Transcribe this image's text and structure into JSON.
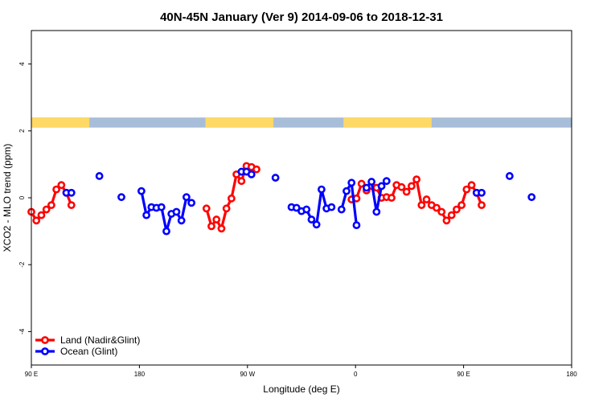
{
  "chart_data": {
    "type": "line",
    "title": "40N-45N January (Ver 9)   2014-09-06 to 2018-12-31",
    "xlabel": "Longitude (deg E)",
    "ylabel": "XCO2 - MLO trend (ppm)",
    "xlim": [
      -90,
      180
    ],
    "ylim": [
      -5,
      5
    ],
    "x_ticks": [
      {
        "value": -90,
        "label": "90 E"
      },
      {
        "value": -36,
        "label": "180"
      },
      {
        "value": 18,
        "label": "90 W"
      },
      {
        "value": 72,
        "label": "0"
      },
      {
        "value": 126,
        "label": "90 E"
      },
      {
        "value": 180,
        "label": "180"
      }
    ],
    "y_ticks": [
      -4,
      -2,
      0,
      2,
      4
    ],
    "land_band": {
      "y_range": [
        2.1,
        2.4
      ],
      "land_color": "#FFD966",
      "ocean_color": "#A7BDD8",
      "land_segments": [
        [
          -90,
          -61
        ],
        [
          -3,
          31
        ],
        [
          66,
          110
        ]
      ]
    },
    "legend": {
      "position": "bottom-left"
    },
    "series": [
      {
        "name": "Land (Nadir&Glint)",
        "color": "#FF0000",
        "segments": [
          [
            [
              -90,
              -0.42
            ],
            [
              -87.5,
              -0.68
            ],
            [
              -85,
              -0.52
            ],
            [
              -82.5,
              -0.35
            ],
            [
              -80,
              -0.22
            ],
            [
              -77.5,
              0.25
            ],
            [
              -75,
              0.38
            ],
            [
              -72.5,
              0.15
            ],
            [
              -70,
              -0.22
            ]
          ],
          [
            [
              -2.5,
              -0.32
            ],
            [
              0,
              -0.85
            ],
            [
              2.5,
              -0.65
            ],
            [
              5,
              -0.92
            ],
            [
              7.5,
              -0.32
            ],
            [
              10,
              -0.02
            ],
            [
              12.5,
              0.7
            ],
            [
              15,
              0.5
            ],
            [
              17.5,
              0.95
            ],
            [
              20,
              0.92
            ],
            [
              22.5,
              0.85
            ]
          ],
          [
            [
              70,
              -0.05
            ],
            [
              72.5,
              -0.02
            ],
            [
              75,
              0.42
            ],
            [
              77.5,
              0.22
            ],
            [
              80,
              0.35
            ],
            [
              82.5,
              0.3
            ],
            [
              85,
              0.0
            ],
            [
              87.5,
              0.02
            ],
            [
              90,
              0.0
            ],
            [
              92.5,
              0.38
            ],
            [
              95,
              0.32
            ],
            [
              97.5,
              0.18
            ],
            [
              100,
              0.35
            ],
            [
              102.5,
              0.55
            ],
            [
              105,
              -0.22
            ],
            [
              107.5,
              -0.05
            ],
            [
              110,
              -0.22
            ],
            [
              112.5,
              -0.3
            ],
            [
              115,
              -0.42
            ],
            [
              117.5,
              -0.68
            ],
            [
              120,
              -0.52
            ],
            [
              122.5,
              -0.35
            ],
            [
              125,
              -0.22
            ],
            [
              127.5,
              0.25
            ],
            [
              130,
              0.38
            ],
            [
              132.5,
              0.15
            ],
            [
              135,
              -0.22
            ]
          ]
        ]
      },
      {
        "name": "Ocean (Glint)",
        "color": "#0000FF",
        "segments": [
          [
            [
              -72.5,
              0.15
            ],
            [
              -70,
              0.15
            ]
          ],
          [
            [
              -56,
              0.65
            ]
          ],
          [
            [
              -45,
              0.02
            ]
          ],
          [
            [
              -35,
              0.2
            ],
            [
              -32.5,
              -0.52
            ],
            [
              -30,
              -0.28
            ],
            [
              -27.5,
              -0.3
            ],
            [
              -25,
              -0.28
            ],
            [
              -22.5,
              -1.0
            ],
            [
              -20,
              -0.48
            ],
            [
              -17.5,
              -0.42
            ],
            [
              -15,
              -0.68
            ],
            [
              -12.5,
              0.02
            ],
            [
              -10,
              -0.15
            ]
          ],
          [
            [
              15,
              0.78
            ],
            [
              17.5,
              0.78
            ],
            [
              20,
              0.7
            ]
          ],
          [
            [
              32,
              0.6
            ]
          ],
          [
            [
              40,
              -0.28
            ],
            [
              42.5,
              -0.3
            ],
            [
              45,
              -0.4
            ],
            [
              47.5,
              -0.35
            ],
            [
              50,
              -0.65
            ],
            [
              52.5,
              -0.8
            ],
            [
              55,
              0.25
            ],
            [
              57.5,
              -0.32
            ],
            [
              60,
              -0.28
            ]
          ],
          [
            [
              65,
              -0.35
            ],
            [
              67.5,
              0.2
            ],
            [
              70,
              0.45
            ],
            [
              72.5,
              -0.82
            ]
          ],
          [
            [
              77.5,
              0.3
            ],
            [
              80,
              0.48
            ],
            [
              82.5,
              -0.42
            ],
            [
              85,
              0.35
            ],
            [
              87.5,
              0.5
            ]
          ],
          [
            [
              132.5,
              0.15
            ],
            [
              135,
              0.15
            ]
          ],
          [
            [
              149,
              0.65
            ]
          ],
          [
            [
              160,
              0.02
            ]
          ]
        ]
      }
    ]
  }
}
